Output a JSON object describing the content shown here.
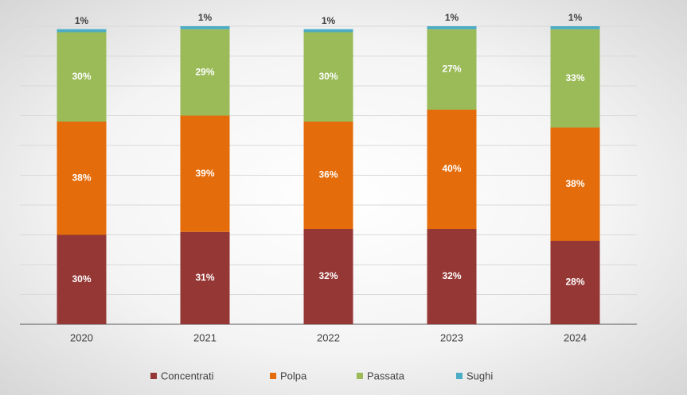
{
  "chart_data": {
    "type": "stacked_bar",
    "categories": [
      "2020",
      "2021",
      "2022",
      "2023",
      "2024"
    ],
    "series": [
      {
        "name": "Concentrati",
        "color": "#953735",
        "values": [
          30,
          31,
          32,
          32,
          28
        ],
        "value_labels": [
          "30%",
          "31%",
          "32%",
          "32%",
          "28%"
        ]
      },
      {
        "name": "Polpa",
        "color": "#e46c0a",
        "values": [
          38,
          39,
          36,
          40,
          38
        ],
        "value_labels": [
          "38%",
          "39%",
          "36%",
          "40%",
          "38%"
        ]
      },
      {
        "name": "Passata",
        "color": "#9bbb59",
        "values": [
          30,
          29,
          30,
          27,
          33
        ],
        "value_labels": [
          "30%",
          "29%",
          "30%",
          "27%",
          "33%"
        ]
      },
      {
        "name": "Sughi",
        "color": "#4bacc6",
        "values": [
          1,
          1,
          1,
          1,
          1
        ],
        "value_labels": [
          "1%",
          "1%",
          "1%",
          "1%",
          "1%"
        ]
      }
    ],
    "ylim": [
      0,
      100
    ],
    "yticks": [
      0,
      10,
      20,
      30,
      40,
      50,
      60,
      70,
      80,
      90,
      100
    ],
    "grid": true,
    "legend": "bottom"
  }
}
